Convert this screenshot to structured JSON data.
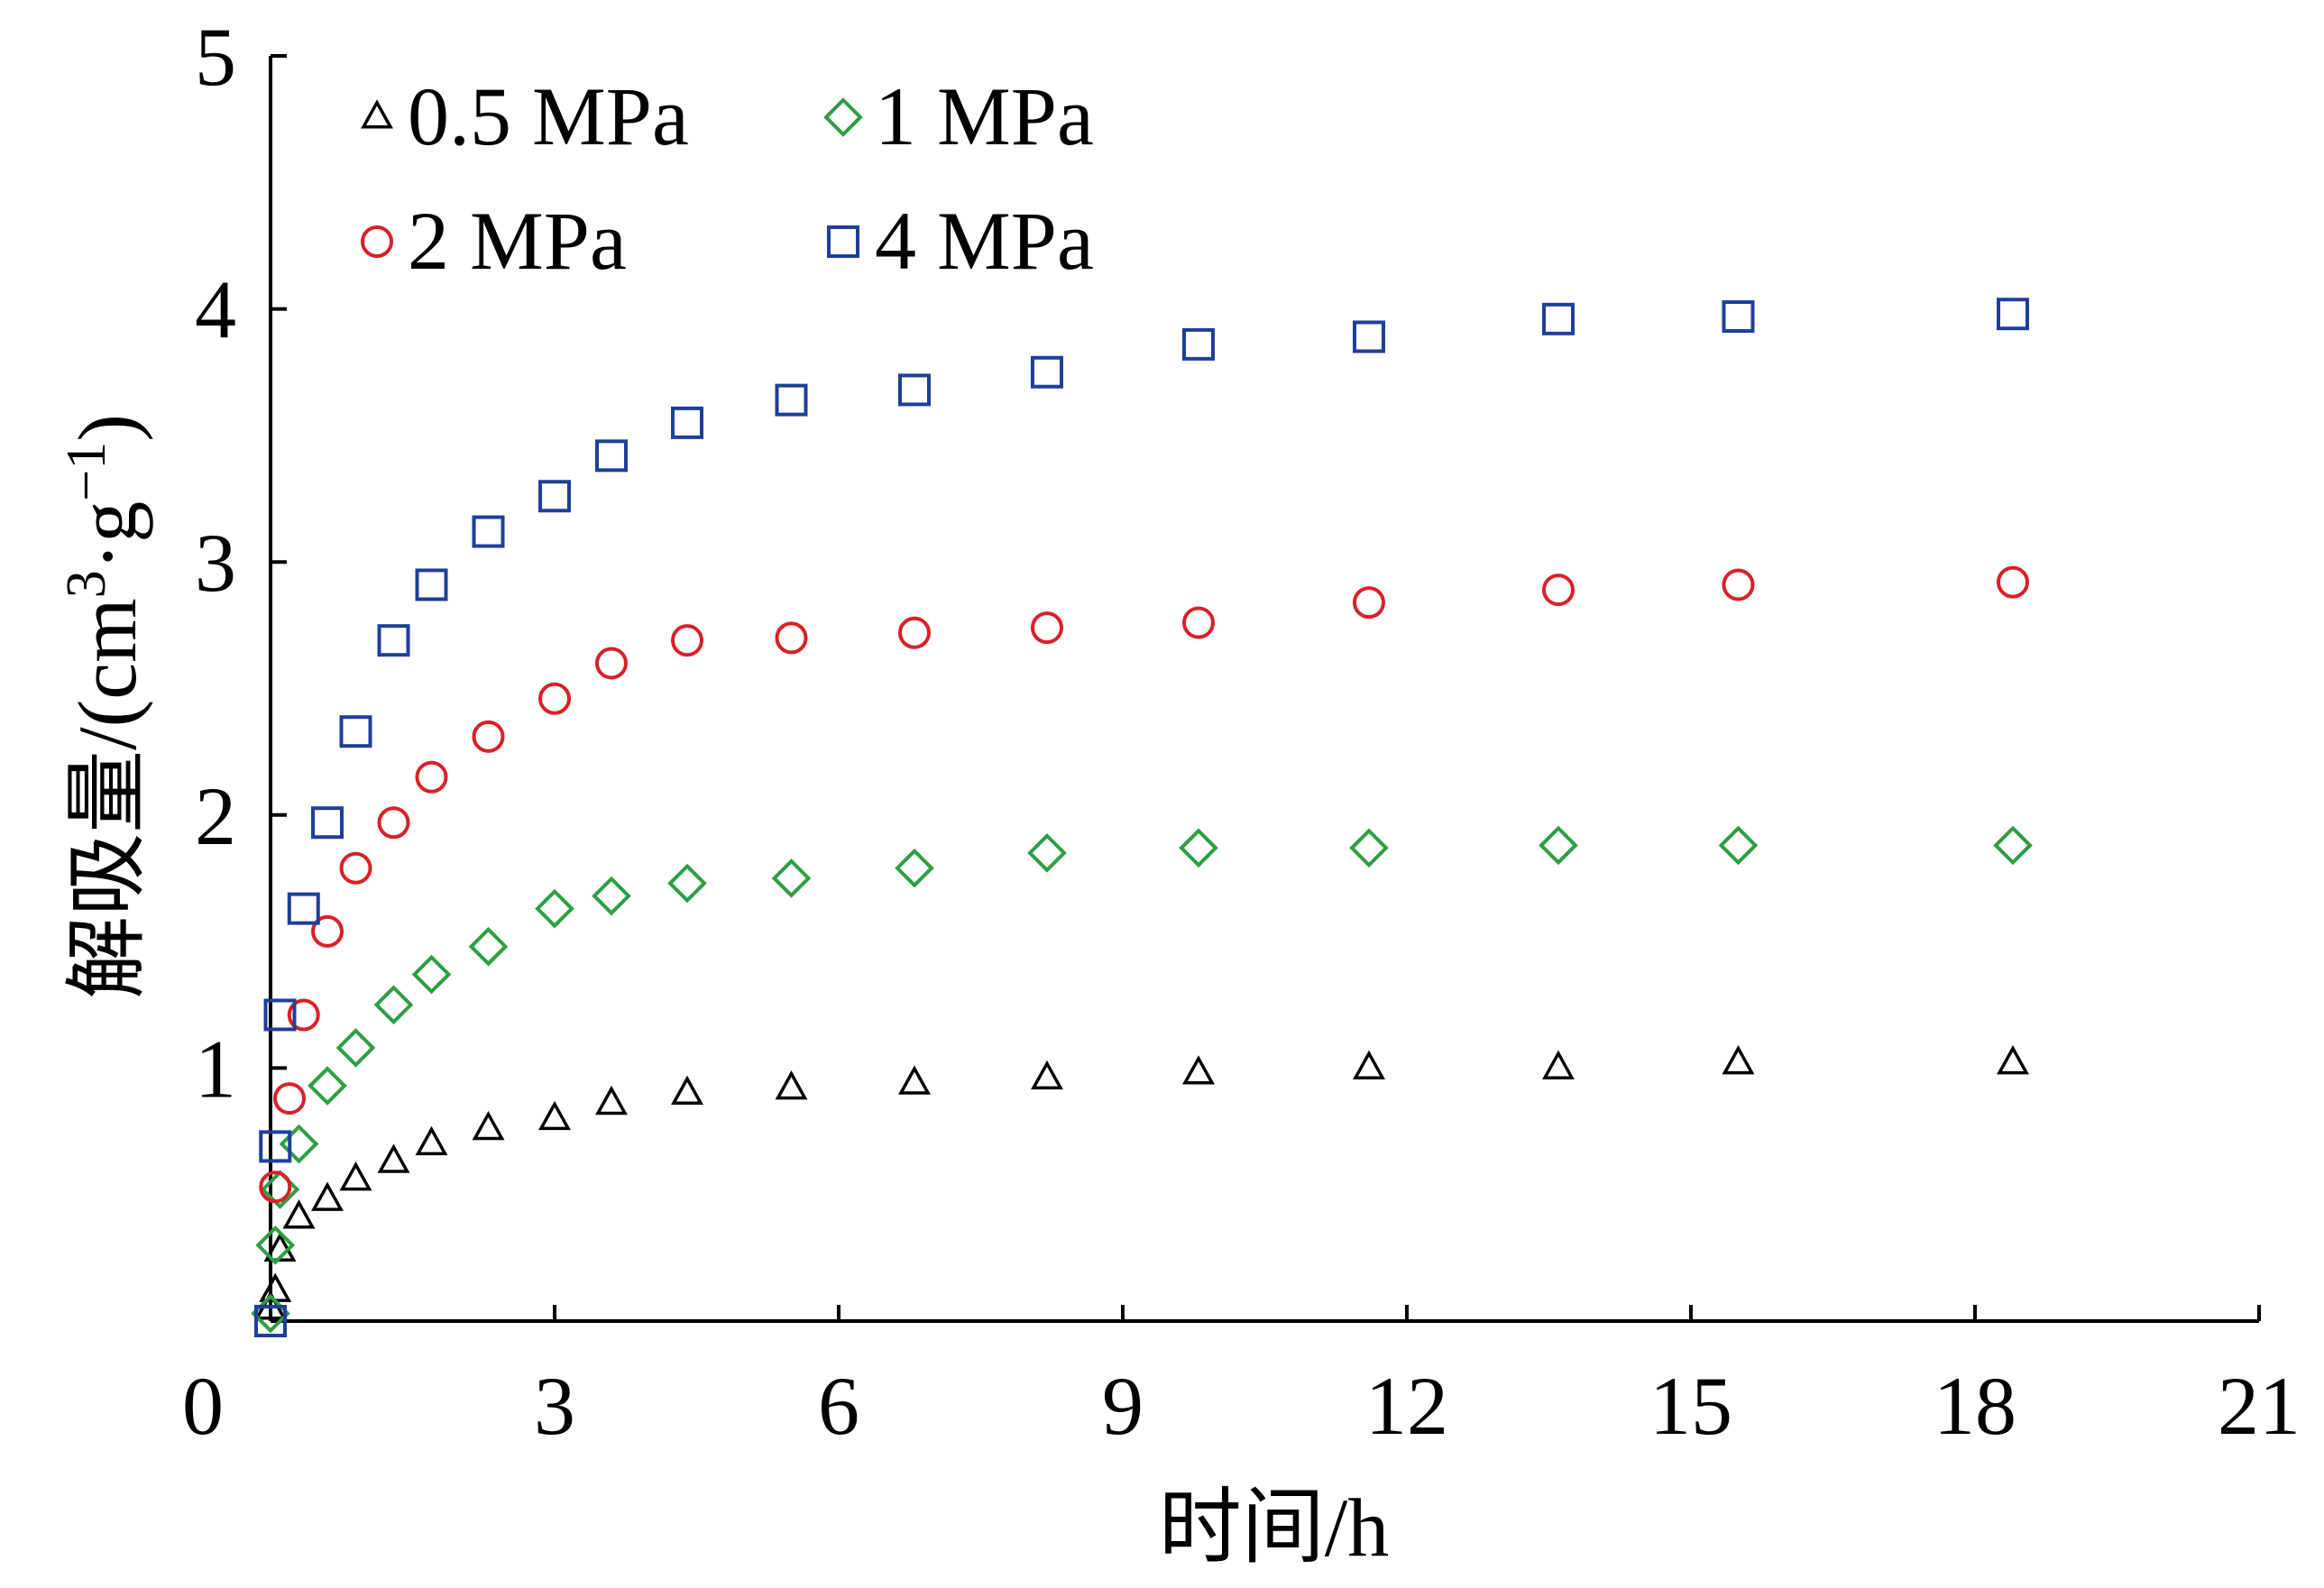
{
  "chart_data": {
    "type": "scatter",
    "title": "",
    "xlabel": "时间/h",
    "ylabel": "解吸量/(cm³·g⁻¹)",
    "ylabel_parts": {
      "main": "解吸量/(cm",
      "sup1": "3",
      "mid": "·g",
      "sup2": "−1",
      "end": ")"
    },
    "xlim": [
      0,
      21
    ],
    "ylim": [
      0,
      5
    ],
    "xticks": [
      0,
      3,
      6,
      9,
      12,
      15,
      18,
      21
    ],
    "yticks": [
      1,
      2,
      3,
      4,
      5
    ],
    "origin_label": "0",
    "grid": false,
    "legend_position": "top-left",
    "series": [
      {
        "name": "0.5 MPa",
        "marker": "triangle",
        "color": "#000000",
        "x": [
          0,
          0.05,
          0.1,
          0.3,
          0.6,
          0.9,
          1.3,
          1.7,
          2.3,
          3.0,
          3.6,
          4.4,
          5.5,
          6.8,
          8.2,
          9.8,
          11.6,
          13.6,
          15.5,
          18.4
        ],
        "y": [
          0.05,
          0.12,
          0.28,
          0.41,
          0.48,
          0.56,
          0.63,
          0.7,
          0.76,
          0.8,
          0.86,
          0.9,
          0.92,
          0.94,
          0.96,
          0.98,
          1.0,
          1.0,
          1.02,
          1.02
        ]
      },
      {
        "name": "1 MPa",
        "marker": "diamond",
        "color": "#2e9e44",
        "x": [
          0,
          0.05,
          0.1,
          0.3,
          0.6,
          0.9,
          1.3,
          1.7,
          2.3,
          3.0,
          3.6,
          4.4,
          5.5,
          6.8,
          8.2,
          9.8,
          11.6,
          13.6,
          15.5,
          18.4
        ],
        "y": [
          0.03,
          0.3,
          0.52,
          0.7,
          0.93,
          1.08,
          1.25,
          1.37,
          1.48,
          1.63,
          1.68,
          1.73,
          1.75,
          1.79,
          1.85,
          1.87,
          1.87,
          1.88,
          1.88,
          1.88
        ]
      },
      {
        "name": "2 MPa",
        "marker": "circle",
        "color": "#d92027",
        "x": [
          0.05,
          0.2,
          0.35,
          0.6,
          0.9,
          1.3,
          1.7,
          2.3,
          3.0,
          3.6,
          4.4,
          5.5,
          6.8,
          8.2,
          9.8,
          11.6,
          13.6,
          15.5,
          18.4
        ],
        "y": [
          0.53,
          0.88,
          1.21,
          1.54,
          1.79,
          1.97,
          2.15,
          2.31,
          2.46,
          2.6,
          2.69,
          2.7,
          2.72,
          2.74,
          2.76,
          2.84,
          2.89,
          2.91,
          2.92
        ]
      },
      {
        "name": "4 MPa",
        "marker": "square",
        "color": "#1f3f99",
        "x": [
          0,
          0.05,
          0.1,
          0.35,
          0.6,
          0.9,
          1.3,
          1.7,
          2.3,
          3.0,
          3.6,
          4.4,
          5.5,
          6.8,
          8.2,
          9.8,
          11.6,
          13.6,
          15.5,
          18.4
        ],
        "y": [
          0.0,
          0.69,
          1.21,
          1.63,
          1.97,
          2.33,
          2.69,
          2.91,
          3.12,
          3.26,
          3.42,
          3.55,
          3.64,
          3.68,
          3.75,
          3.86,
          3.89,
          3.96,
          3.97,
          3.98
        ]
      }
    ]
  }
}
